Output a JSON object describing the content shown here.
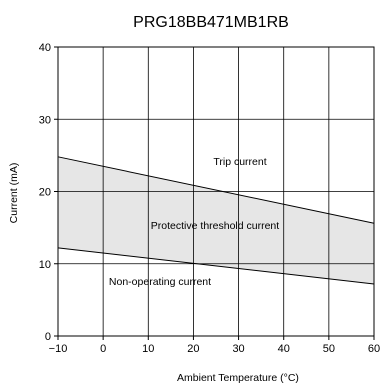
{
  "chart_data": {
    "type": "area",
    "title": "PRG18BB471MB1RB",
    "xlabel": "Ambient Temperature (°C)",
    "ylabel": "Current (mA)",
    "xlim": [
      -10,
      60
    ],
    "ylim": [
      0,
      40
    ],
    "x_ticks": [
      "−10",
      "0",
      "10",
      "20",
      "30",
      "40",
      "50",
      "60"
    ],
    "y_ticks": [
      "0",
      "10",
      "20",
      "30",
      "40"
    ],
    "grid": true,
    "series": [
      {
        "name": "Trip current",
        "x": [
          -10,
          60
        ],
        "y": [
          24.8,
          15.6
        ]
      },
      {
        "name": "Non-operating current",
        "x": [
          -10,
          60
        ],
        "y": [
          12.2,
          7.2
        ]
      }
    ],
    "band_label": "Protective threshold current",
    "colors": {
      "band": "#e6e6e6",
      "line": "#000000",
      "grid": "#000000"
    }
  }
}
